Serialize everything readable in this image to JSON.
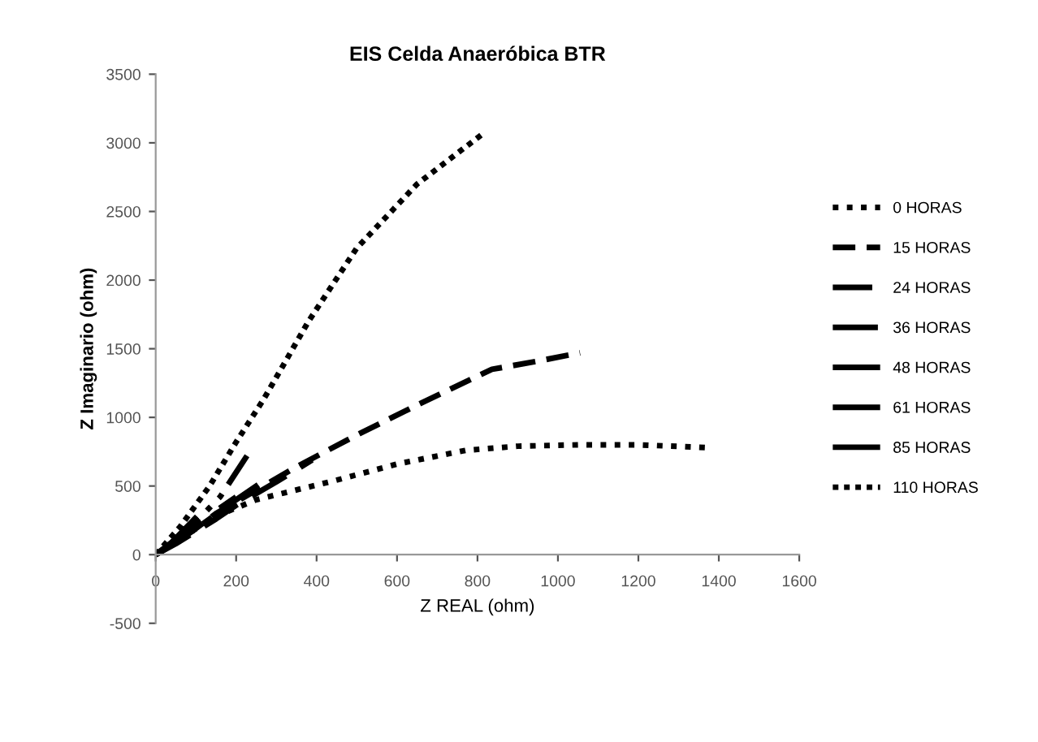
{
  "chart_data": {
    "type": "line",
    "title": "EIS Celda Anaeróbica BTR",
    "xlabel": "Z REAL (ohm)",
    "ylabel": "Z Imaginario (ohm)",
    "xlim": [
      0,
      1600
    ],
    "xticks": [
      0,
      200,
      400,
      600,
      800,
      1000,
      1200,
      1400,
      1600
    ],
    "ylim": [
      -500,
      3500
    ],
    "yticks": [
      -500,
      0,
      500,
      1000,
      1500,
      2000,
      2500,
      3000,
      3500
    ],
    "grid": false,
    "legend": "right",
    "marker": "none",
    "series": [
      {
        "name": "0 HORAS",
        "color": "#000000",
        "line_style": "dotted",
        "x": [
          0,
          50,
          100,
          150,
          250,
          446,
          600,
          771,
          900,
          1050,
          1200,
          1371
        ],
        "values": [
          0,
          90,
          190,
          280,
          400,
          540,
          660,
          760,
          790,
          800,
          800,
          780
        ]
      },
      {
        "name": "15 HORAS",
        "color": "#000000",
        "line_style": "dashed",
        "x": [
          0,
          50,
          100,
          150,
          250,
          350,
          499,
          650,
          836,
          950,
          1055
        ],
        "values": [
          0,
          90,
          190,
          300,
          470,
          640,
          870,
          1090,
          1350,
          1410,
          1470
        ]
      },
      {
        "name": "24 HORAS",
        "color": "#000000",
        "line_style": "dashed",
        "x": [
          0,
          50,
          100,
          150,
          200,
          300,
          389
        ],
        "values": [
          0,
          80,
          170,
          260,
          360,
          530,
          690
        ]
      },
      {
        "name": "36 HORAS",
        "color": "#000000",
        "line_style": "dashed",
        "x": [
          0,
          60,
          120,
          180,
          260
        ],
        "values": [
          0,
          110,
          230,
          360,
          520
        ]
      },
      {
        "name": "48 HORAS",
        "color": "#000000",
        "line_style": "dashed",
        "x": [
          0,
          50,
          100,
          150,
          200
        ],
        "values": [
          0,
          100,
          210,
          320,
          420
        ]
      },
      {
        "name": "61 HORAS",
        "color": "#000000",
        "line_style": "dashed",
        "x": [
          0,
          40,
          80,
          120,
          160,
          227
        ],
        "values": [
          0,
          90,
          190,
          300,
          420,
          720
        ]
      },
      {
        "name": "85 HORAS",
        "color": "#000000",
        "line_style": "dashed",
        "x": [
          0,
          30,
          60,
          90,
          110
        ],
        "values": [
          0,
          60,
          150,
          240,
          300
        ]
      },
      {
        "name": "110 HORAS",
        "color": "#000000",
        "line_style": "dotted",
        "x": [
          0,
          60,
          134,
          200,
          268,
          380,
          499,
          650,
          815
        ],
        "values": [
          0,
          200,
          500,
          820,
          1130,
          1700,
          2230,
          2700,
          3070
        ]
      }
    ]
  }
}
